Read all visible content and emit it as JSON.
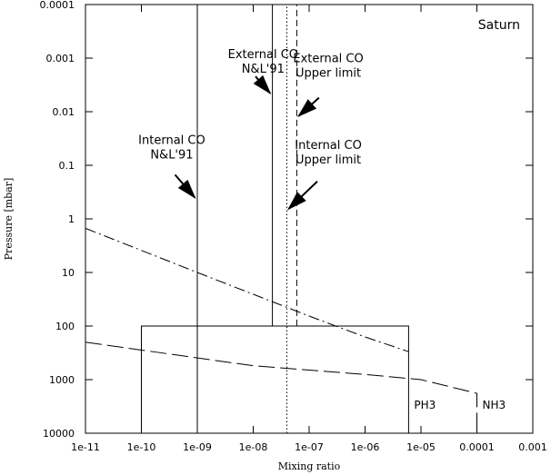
{
  "chart_data": {
    "type": "line",
    "title": "Saturn",
    "xlabel": "Mixing ratio",
    "ylabel": "Pressure [mbar]",
    "x_scale": "log",
    "y_scale": "log",
    "y_inverted": true,
    "xlim": [
      1e-11,
      0.001
    ],
    "ylim": [
      10000,
      0.0001
    ],
    "x_ticks": [
      {
        "value": 1e-11,
        "label": "1e-11"
      },
      {
        "value": 1e-10,
        "label": "1e-10"
      },
      {
        "value": 1e-09,
        "label": "1e-09"
      },
      {
        "value": 1e-08,
        "label": "1e-08"
      },
      {
        "value": 1e-07,
        "label": "1e-07"
      },
      {
        "value": 1e-06,
        "label": "1e-06"
      },
      {
        "value": 1e-05,
        "label": "1e-05"
      },
      {
        "value": 0.0001,
        "label": "0.0001"
      },
      {
        "value": 0.001,
        "label": "0.001"
      }
    ],
    "y_ticks": [
      {
        "value": 0.0001,
        "label": "0.0001"
      },
      {
        "value": 0.001,
        "label": "0.001"
      },
      {
        "value": 0.01,
        "label": "0.01"
      },
      {
        "value": 0.1,
        "label": "0.1"
      },
      {
        "value": 1,
        "label": "1"
      },
      {
        "value": 10,
        "label": "10"
      },
      {
        "value": 100,
        "label": "100"
      },
      {
        "value": 1000,
        "label": "1000"
      },
      {
        "value": 10000,
        "label": "10000"
      }
    ],
    "series": [
      {
        "name": "PH3",
        "dash": "solid",
        "points": [
          [
            1e-10,
            10000
          ],
          [
            1e-10,
            100
          ],
          [
            6e-06,
            100
          ],
          [
            6e-06,
            10000
          ]
        ]
      },
      {
        "name": "NH3",
        "dash": "longdash",
        "points": [
          [
            1e-11,
            200
          ],
          [
            1e-08,
            550
          ],
          [
            1e-06,
            800
          ],
          [
            6e-06,
            950
          ],
          [
            1e-05,
            1000
          ],
          [
            0.0001,
            1800
          ],
          [
            0.0001,
            10000
          ]
        ]
      },
      {
        "dash": "dashdot",
        "points": [
          [
            1e-11,
            1.5
          ],
          [
            1e-09,
            10
          ],
          [
            1e-07,
            65
          ],
          [
            1e-06,
            160
          ],
          [
            6e-06,
            300
          ]
        ]
      },
      {
        "dash": "solid",
        "points": [
          [
            1e-09,
            10000
          ],
          [
            1e-09,
            0.0001
          ]
        ]
      },
      {
        "dash": "solid",
        "points": [
          [
            1e-09,
            100
          ],
          [
            2.2e-08,
            100
          ],
          [
            2.2e-08,
            0.0001
          ]
        ]
      },
      {
        "dash": "dotted",
        "points": [
          [
            4e-08,
            10000
          ],
          [
            4e-08,
            0.0001
          ]
        ]
      },
      {
        "dash": "dashed",
        "points": [
          [
            4e-08,
            100
          ],
          [
            6e-08,
            100
          ],
          [
            6e-08,
            0.0001
          ]
        ]
      }
    ],
    "annotations": [
      {
        "lines": [
          "External CO",
          "N&L'91"
        ],
        "text_at": [
          1.5e-08,
          0.001
        ],
        "arrow_from": [
          1.1e-08,
          0.0022
        ],
        "arrow_to": [
          2e-08,
          0.0045
        ]
      },
      {
        "lines": [
          "External CO",
          "Upper limit"
        ],
        "text_at": [
          2.2e-07,
          0.0012
        ],
        "arrow_from": [
          1.5e-07,
          0.0055
        ],
        "arrow_to": [
          6.5e-08,
          0.012
        ]
      },
      {
        "lines": [
          "Internal CO",
          "N&L'91"
        ],
        "text_at": [
          3.5e-10,
          0.04
        ],
        "arrow_from": [
          4e-10,
          0.15
        ],
        "arrow_to": [
          9e-10,
          0.4
        ]
      },
      {
        "lines": [
          "Internal CO",
          "Upper limit"
        ],
        "text_at": [
          2.2e-07,
          0.05
        ],
        "arrow_from": [
          1.4e-07,
          0.2
        ],
        "arrow_to": [
          4.3e-08,
          0.65
        ]
      }
    ]
  }
}
